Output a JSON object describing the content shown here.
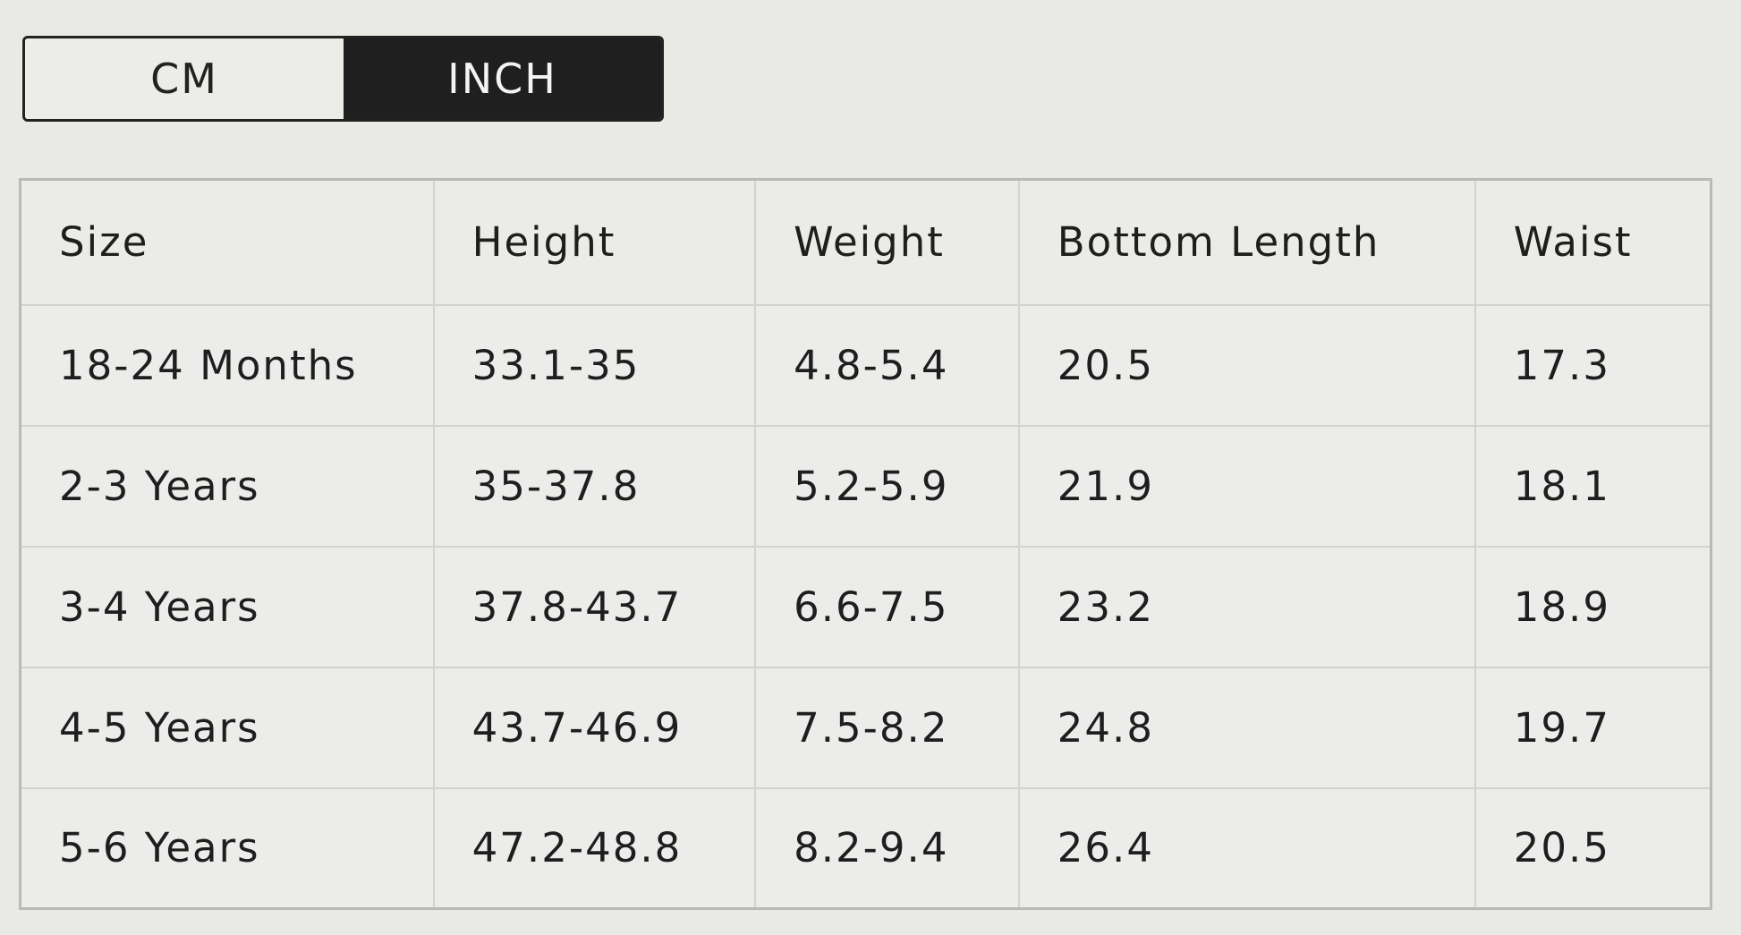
{
  "unit_toggle": {
    "options": [
      "CM",
      "INCH"
    ],
    "selected": "INCH"
  },
  "table": {
    "headers": [
      "Size",
      "Height",
      "Weight",
      "Bottom Length",
      "Waist"
    ],
    "rows": [
      [
        "18-24 Months",
        "33.1-35",
        "4.8-5.4",
        "20.5",
        "17.3"
      ],
      [
        "2-3 Years",
        "35-37.8",
        "5.2-5.9",
        "21.9",
        "18.1"
      ],
      [
        "3-4 Years",
        "37.8-43.7",
        "6.6-7.5",
        "23.2",
        "18.9"
      ],
      [
        "4-5 Years",
        "43.7-46.9",
        "7.5-8.2",
        "24.8",
        "19.7"
      ],
      [
        "5-6 Years",
        "47.2-48.8",
        "8.2-9.4",
        "26.4",
        "20.5"
      ]
    ]
  },
  "colors": {
    "selected_bg": "#1f1f1f",
    "background": "#e9e9e6"
  }
}
